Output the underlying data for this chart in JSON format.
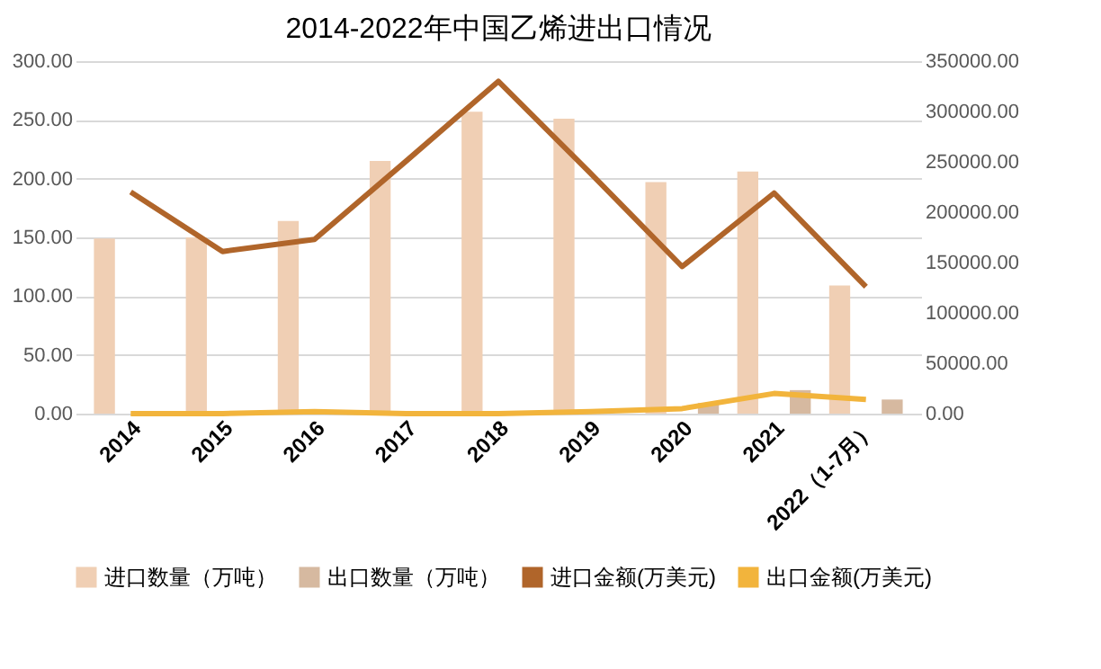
{
  "chart_data": {
    "type": "bar",
    "title": "2014-2022年中国乙烯进出口情况",
    "categories": [
      "2014",
      "2015",
      "2016",
      "2017",
      "2018",
      "2019",
      "2020",
      "2021",
      "2022（1-7月）"
    ],
    "series": [
      {
        "name": "进口数量（万吨）",
        "color": "#f0cfb4",
        "values": [
          149,
          150,
          164,
          215,
          257,
          251,
          197,
          206,
          109
        ]
      },
      {
        "name": "出口数量（万吨）",
        "color": "#d6b9a0",
        "values": [
          null,
          null,
          null,
          null,
          null,
          null,
          9,
          20,
          12
        ]
      },
      {
        "name": "进口金额(万美元)",
        "type": "line",
        "axis": "y2",
        "color": "#b0652a",
        "values": [
          220000,
          161000,
          173000,
          251000,
          330000,
          239000,
          146000,
          219000,
          126000
        ]
      },
      {
        "name": "出口金额(万美元)",
        "type": "line",
        "axis": "y2",
        "color": "#f2b43c",
        "values": [
          0,
          0,
          2000,
          0,
          0,
          2000,
          5000,
          20000,
          14000
        ]
      }
    ],
    "ylim": [
      0,
      300
    ],
    "yticks": [
      {
        "value": 0,
        "label": "0.00"
      },
      {
        "value": 50,
        "label": "50.00"
      },
      {
        "value": 100,
        "label": "100.00"
      },
      {
        "value": 150,
        "label": "150.00"
      },
      {
        "value": 200,
        "label": "200.00"
      },
      {
        "value": 250,
        "label": "250.00"
      },
      {
        "value": 300,
        "label": "300.00"
      }
    ],
    "y2lim": [
      0,
      350000
    ],
    "y2ticks": [
      {
        "value": 0,
        "label": "0.00"
      },
      {
        "value": 50000,
        "label": "50000.00"
      },
      {
        "value": 100000,
        "label": "100000.00"
      },
      {
        "value": 150000,
        "label": "150000.00"
      },
      {
        "value": 200000,
        "label": "200000.00"
      },
      {
        "value": 250000,
        "label": "250000.00"
      },
      {
        "value": 300000,
        "label": "300000.00"
      },
      {
        "value": 350000,
        "label": "350000.00"
      }
    ],
    "grid": "y",
    "legend": "bottom"
  }
}
